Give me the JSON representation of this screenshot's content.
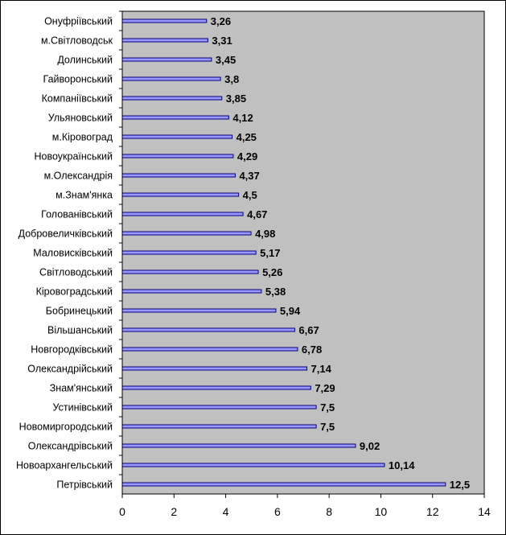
{
  "chart_data": {
    "type": "bar",
    "orientation": "horizontal",
    "title": "",
    "xlabel": "",
    "ylabel": "",
    "categories": [
      "Онуфріївський",
      "м.Світловодськ",
      "Долинський",
      "Гайворонський",
      "Компаніївський",
      "Ульяновський",
      "м.Кіровоград",
      "Новоукраїнський",
      "м.Олександрія",
      "м.Знам'янка",
      "Голованівський",
      "Добровеличківський",
      "Маловисківський",
      "Світловодський",
      "Кіровоградський",
      "Бобринецький",
      "Вільшанський",
      "Новгородківський",
      "Олександрійський",
      "Знам'янський",
      "Устинівський",
      "Новомиргородський",
      "Олександрівський",
      "Новоархангельський",
      "Петрівський"
    ],
    "values": [
      3.26,
      3.31,
      3.45,
      3.8,
      3.85,
      4.12,
      4.25,
      4.29,
      4.37,
      4.5,
      4.67,
      4.98,
      5.17,
      5.26,
      5.38,
      5.94,
      6.67,
      6.78,
      7.14,
      7.29,
      7.5,
      7.5,
      9.02,
      10.14,
      12.5
    ],
    "value_labels": [
      "3,26",
      "3,31",
      "3,45",
      "3,8",
      "3,85",
      "4,12",
      "4,25",
      "4,29",
      "4,37",
      "4,5",
      "4,67",
      "4,98",
      "5,17",
      "5,26",
      "5,38",
      "5,94",
      "6,67",
      "6,78",
      "7,14",
      "7,29",
      "7,5",
      "7,5",
      "9,02",
      "10,14",
      "12,5"
    ],
    "xlim": [
      0,
      14
    ],
    "xticks": [
      "0",
      "2",
      "4",
      "6",
      "8",
      "10",
      "12",
      "14"
    ],
    "grid": false,
    "legend": "none",
    "colors": {
      "plot_background": "#c0c0c0",
      "bar_fill": "#9999ff",
      "bar_stroke": "#000080",
      "axis": "#000000"
    }
  }
}
